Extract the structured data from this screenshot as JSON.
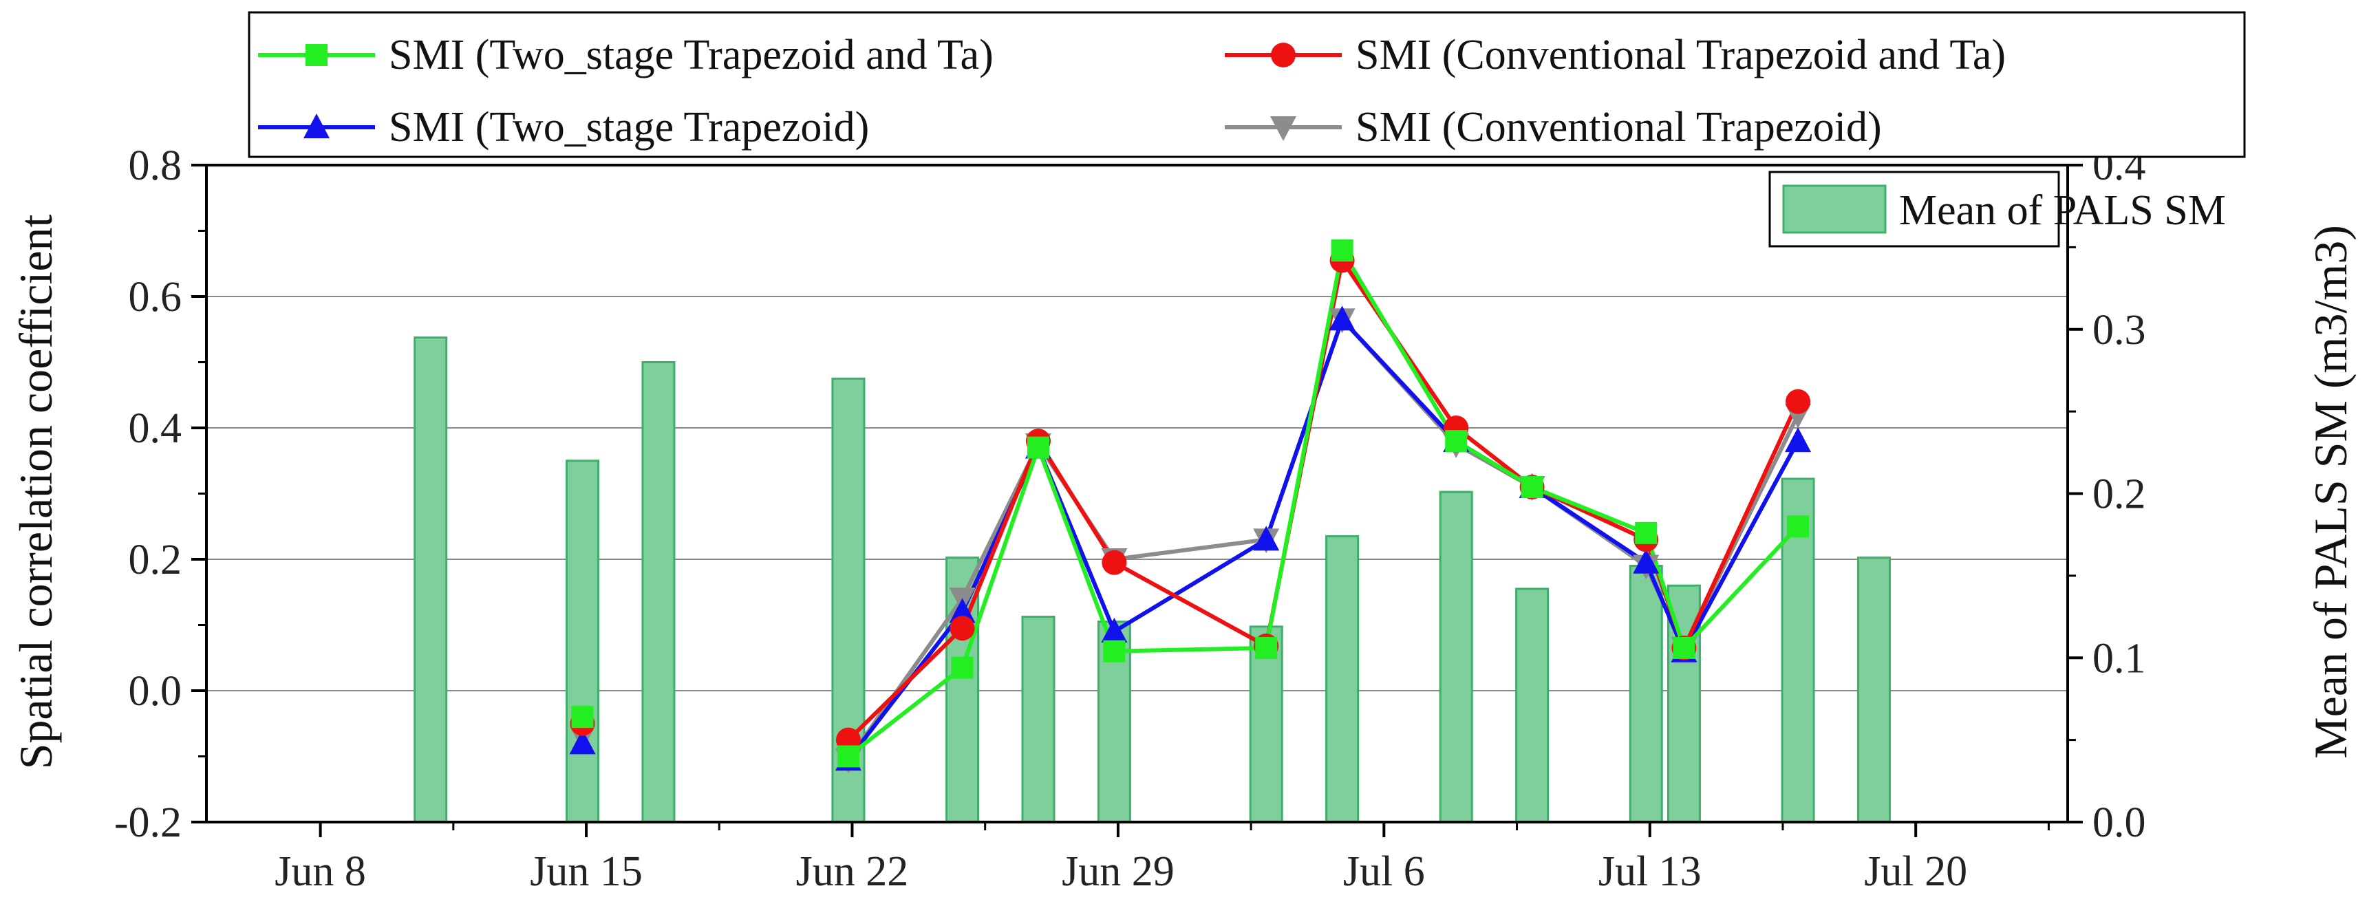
{
  "chart_data": {
    "type": "bar+line",
    "title": "",
    "xlabel": "",
    "ylabel_left": "Spatial correlation coefficient",
    "ylabel_right": "Mean of PALS SM (m3/m3)",
    "ylim_left": [
      -0.2,
      0.8
    ],
    "ylim_right": [
      0.0,
      0.4
    ],
    "x_range_days": [
      -3,
      46
    ],
    "x_ticks": [
      {
        "day": 0,
        "label": "Jun 8"
      },
      {
        "day": 7,
        "label": "Jun 15"
      },
      {
        "day": 14,
        "label": "Jun 22"
      },
      {
        "day": 21,
        "label": "Jun 29"
      },
      {
        "day": 28,
        "label": "Jul 6"
      },
      {
        "day": 35,
        "label": "Jul 13"
      },
      {
        "day": 42,
        "label": "Jul 20"
      }
    ],
    "y_ticks_left": [
      "-0.2",
      "0.0",
      "0.2",
      "0.4",
      "0.6",
      "0.8"
    ],
    "y_ticks_right": [
      "0.0",
      "0.1",
      "0.2",
      "0.3",
      "0.4"
    ],
    "bars": {
      "name": "Mean of PALS SM",
      "color": "#7fcf9c",
      "edge": "#3fae6a",
      "days": [
        2.9,
        6.9,
        8.9,
        13.9,
        16.9,
        18.9,
        20.9,
        24.9,
        26.9,
        29.9,
        31.9,
        34.9,
        35.9,
        38.9,
        40.9
      ],
      "values": [
        0.295,
        0.22,
        0.28,
        0.27,
        0.161,
        0.125,
        0.122,
        0.119,
        0.174,
        0.201,
        0.142,
        0.156,
        0.144,
        0.209,
        0.161
      ]
    },
    "series": [
      {
        "name": "SMI (Two_stage Trapezoid and Ta)",
        "color": "#22ee22",
        "marker": "square",
        "days": [
          6.9,
          13.9,
          16.9,
          18.9,
          20.9,
          24.9,
          26.9,
          29.9,
          31.9,
          34.9,
          35.9,
          38.9
        ],
        "values": [
          -0.04,
          -0.1,
          0.035,
          0.37,
          0.06,
          0.065,
          0.67,
          0.38,
          0.31,
          0.24,
          0.065,
          0.25
        ]
      },
      {
        "name": "SMI (Conventional Trapezoid and Ta)",
        "color": "#ee1111",
        "marker": "circle",
        "days": [
          6.9,
          13.9,
          16.9,
          18.9,
          20.9,
          24.9,
          26.9,
          29.9,
          31.9,
          34.9,
          35.9,
          38.9
        ],
        "values": [
          -0.05,
          -0.075,
          0.095,
          0.38,
          0.195,
          0.068,
          0.655,
          0.4,
          0.31,
          0.23,
          0.065,
          0.44
        ]
      },
      {
        "name": "SMI (Two_stage Trapezoid)",
        "color": "#1111ee",
        "marker": "triangle-up",
        "days": [
          6.9,
          13.9,
          16.9,
          18.9,
          20.9,
          24.9,
          26.9,
          29.9,
          31.9,
          34.9,
          35.9,
          38.9
        ],
        "values": [
          -0.08,
          -0.105,
          0.12,
          0.37,
          0.09,
          0.23,
          0.565,
          0.38,
          0.31,
          0.195,
          0.06,
          0.38
        ]
      },
      {
        "name": "SMI (Conventional Trapezoid)",
        "color": "#8c8c8c",
        "marker": "triangle-down",
        "days": [
          6.9,
          13.9,
          16.9,
          18.9,
          20.9,
          24.9,
          26.9,
          29.9,
          31.9,
          34.9,
          35.9,
          38.9
        ],
        "values": [
          -0.07,
          -0.105,
          0.14,
          0.375,
          0.2,
          0.23,
          0.565,
          0.375,
          0.31,
          0.19,
          0.065,
          0.42
        ]
      }
    ],
    "legend": {
      "top_entries": [
        "SMI (Two_stage Trapezoid and Ta)",
        "SMI (Conventional Trapezoid and Ta)",
        "SMI (Two_stage Trapezoid)",
        "SMI (Conventional Trapezoid)"
      ],
      "bar_entry": "Mean of PALS SM",
      "placement": "top"
    }
  }
}
